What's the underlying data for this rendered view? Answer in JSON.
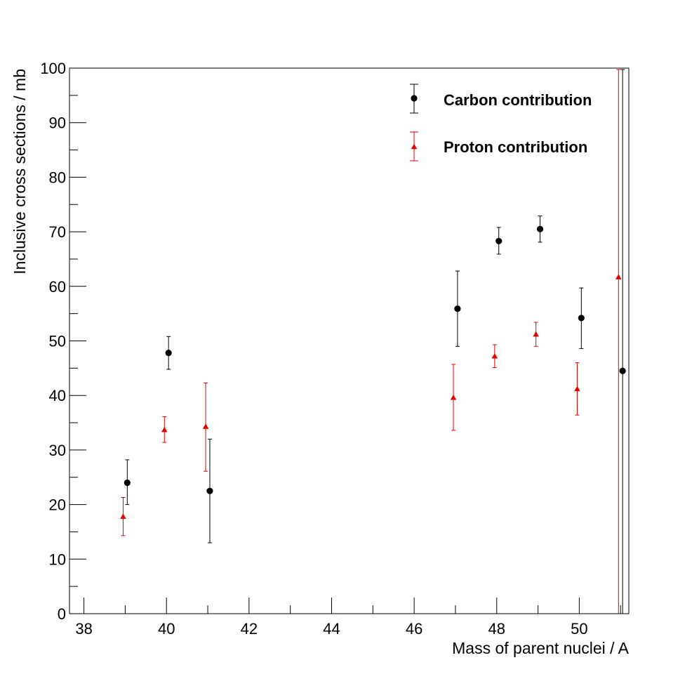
{
  "chart_data": {
    "type": "scatter",
    "title": "",
    "xlabel": "Mass of parent nuclei / A",
    "ylabel": "Inclusive cross sections / mb",
    "xlim": [
      37.65,
      51.2
    ],
    "ylim": [
      0,
      100
    ],
    "x_ticks": [
      38,
      40,
      42,
      44,
      46,
      48,
      50
    ],
    "x_tick_labels": [
      "38",
      "40",
      "42",
      "44",
      "46",
      "48",
      "50"
    ],
    "y_ticks": [
      0,
      10,
      20,
      30,
      40,
      50,
      60,
      70,
      80,
      90,
      100
    ],
    "y_tick_labels": [
      "0",
      "10",
      "20",
      "30",
      "40",
      "50",
      "60",
      "70",
      "80",
      "90",
      "100"
    ],
    "grid": false,
    "legend_position": "top-right",
    "series": [
      {
        "name": "Carbon contribution",
        "marker": "circle",
        "color": "#000000",
        "points": [
          {
            "x": 39.05,
            "y": 24.0,
            "err_low": 4.0,
            "err_high": 4.2
          },
          {
            "x": 40.05,
            "y": 47.8,
            "err_low": 3.0,
            "err_high": 3.0
          },
          {
            "x": 41.05,
            "y": 22.5,
            "err_low": 9.5,
            "err_high": 9.5
          },
          {
            "x": 47.05,
            "y": 55.9,
            "err_low": 6.9,
            "err_high": 6.9
          },
          {
            "x": 48.05,
            "y": 68.3,
            "err_low": 2.4,
            "err_high": 2.5
          },
          {
            "x": 49.05,
            "y": 70.5,
            "err_low": 2.4,
            "err_high": 2.4
          },
          {
            "x": 50.05,
            "y": 54.2,
            "err_low": 5.6,
            "err_high": 5.5
          },
          {
            "x": 51.05,
            "y": 44.5,
            "err_low": 44.5,
            "err_high": 55.5
          }
        ]
      },
      {
        "name": "Proton contribution",
        "marker": "triangle",
        "color": "#e00000",
        "points": [
          {
            "x": 38.95,
            "y": 17.8,
            "err_low": 3.5,
            "err_high": 3.5
          },
          {
            "x": 39.95,
            "y": 33.7,
            "err_low": 2.3,
            "err_high": 2.4
          },
          {
            "x": 40.95,
            "y": 34.3,
            "err_low": 8.2,
            "err_high": 8.0
          },
          {
            "x": 46.95,
            "y": 39.6,
            "err_low": 6.0,
            "err_high": 6.1
          },
          {
            "x": 47.95,
            "y": 47.2,
            "err_low": 2.1,
            "err_high": 2.1
          },
          {
            "x": 48.95,
            "y": 51.2,
            "err_low": 2.2,
            "err_high": 2.2
          },
          {
            "x": 49.95,
            "y": 41.2,
            "err_low": 4.8,
            "err_high": 4.8
          },
          {
            "x": 50.95,
            "y": 61.7,
            "err_low": 61.7,
            "err_high": 38.3
          }
        ]
      }
    ]
  }
}
